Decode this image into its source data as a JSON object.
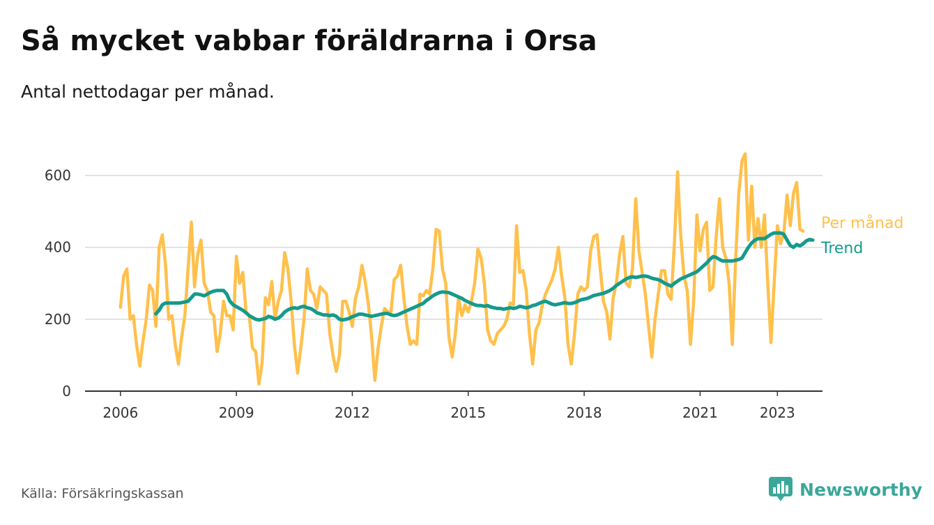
{
  "title": "Så mycket vabbar föräldrarna i Orsa",
  "subtitle": "Antal nettodagar per månad.",
  "source": "Källa: Försäkringskassan",
  "brand": {
    "name": "Newsworthy",
    "icon": "bar-chart-icon",
    "color": "#3aa79a"
  },
  "colors": {
    "monthly": "#ffc04c",
    "trend": "#159a8c",
    "grid": "#d9d9d9",
    "axis": "#333333"
  },
  "chart_data": {
    "type": "line",
    "x_ticks": [
      "2006",
      "2009",
      "2012",
      "2015",
      "2018",
      "2021",
      "2023"
    ],
    "y_ticks": [
      "0",
      "200",
      "400",
      "600"
    ],
    "ylim": [
      0,
      700
    ],
    "xlim": [
      "2005-02",
      "2024-03"
    ],
    "grid": true,
    "legend": "end-labels",
    "series": [
      {
        "name": "Per månad",
        "start": "2006-01",
        "step": "month",
        "values": [
          233,
          320,
          340,
          200,
          210,
          130,
          70,
          140,
          200,
          295,
          280,
          180,
          400,
          435,
          350,
          200,
          210,
          130,
          75,
          150,
          210,
          340,
          470,
          290,
          380,
          420,
          300,
          280,
          220,
          210,
          110,
          160,
          250,
          210,
          210,
          170,
          375,
          300,
          330,
          220,
          210,
          120,
          110,
          20,
          80,
          260,
          240,
          305,
          200,
          250,
          280,
          385,
          340,
          250,
          130,
          50,
          120,
          200,
          340,
          280,
          270,
          230,
          290,
          280,
          270,
          160,
          100,
          55,
          100,
          250,
          250,
          220,
          180,
          260,
          290,
          350,
          305,
          240,
          150,
          30,
          120,
          180,
          230,
          220,
          220,
          310,
          320,
          350,
          260,
          180,
          130,
          140,
          130,
          270,
          265,
          280,
          270,
          340,
          450,
          445,
          340,
          300,
          150,
          95,
          160,
          260,
          210,
          240,
          220,
          250,
          300,
          395,
          370,
          300,
          170,
          140,
          130,
          160,
          170,
          180,
          200,
          245,
          240,
          460,
          330,
          335,
          280,
          160,
          75,
          170,
          190,
          240,
          270,
          290,
          310,
          340,
          400,
          320,
          260,
          130,
          75,
          160,
          270,
          290,
          280,
          290,
          390,
          430,
          435,
          340,
          250,
          220,
          145,
          260,
          300,
          380,
          430,
          300,
          290,
          340,
          535,
          390,
          330,
          270,
          180,
          95,
          200,
          270,
          335,
          335,
          270,
          255,
          410,
          610,
          430,
          320,
          280,
          130,
          250,
          490,
          390,
          450,
          470,
          280,
          290,
          430,
          535,
          400,
          370,
          300,
          130,
          360,
          550,
          640,
          660,
          420,
          570,
          400,
          480,
          400,
          490,
          300,
          135,
          300,
          460,
          410,
          440,
          545,
          460,
          550,
          580,
          450,
          445
        ]
      },
      {
        "name": "Trend",
        "start": "2006-12",
        "step": "month",
        "values": [
          215,
          225,
          240,
          245,
          245,
          245,
          245,
          245,
          246,
          248,
          250,
          260,
          270,
          270,
          268,
          265,
          270,
          275,
          278,
          280,
          280,
          280,
          270,
          250,
          240,
          235,
          230,
          225,
          218,
          210,
          205,
          200,
          198,
          200,
          202,
          208,
          205,
          200,
          203,
          210,
          220,
          226,
          230,
          232,
          230,
          234,
          236,
          232,
          230,
          225,
          218,
          215,
          212,
          212,
          210,
          212,
          208,
          200,
          198,
          200,
          202,
          207,
          210,
          214,
          214,
          212,
          210,
          208,
          210,
          212,
          214,
          216,
          216,
          212,
          210,
          212,
          216,
          220,
          224,
          228,
          232,
          236,
          240,
          244,
          252,
          258,
          265,
          270,
          274,
          276,
          275,
          274,
          270,
          266,
          262,
          258,
          252,
          248,
          244,
          240,
          238,
          238,
          236,
          238,
          234,
          232,
          230,
          230,
          228,
          230,
          232,
          230,
          232,
          236,
          234,
          232,
          234,
          238,
          240,
          244,
          248,
          250,
          246,
          242,
          240,
          242,
          244,
          246,
          244,
          244,
          246,
          250,
          254,
          256,
          258,
          262,
          266,
          268,
          270,
          272,
          276,
          280,
          286,
          294,
          300,
          306,
          312,
          316,
          318,
          316,
          318,
          320,
          320,
          318,
          314,
          312,
          310,
          306,
          300,
          296,
          292,
          300,
          306,
          312,
          316,
          320,
          324,
          328,
          332,
          340,
          348,
          356,
          366,
          374,
          372,
          366,
          362,
          362,
          362,
          362,
          364,
          366,
          370,
          385,
          400,
          412,
          420,
          424,
          424,
          424,
          430,
          436,
          440,
          440,
          440,
          436,
          420,
          405,
          400,
          408,
          404,
          410,
          418,
          422,
          420
        ]
      }
    ]
  }
}
